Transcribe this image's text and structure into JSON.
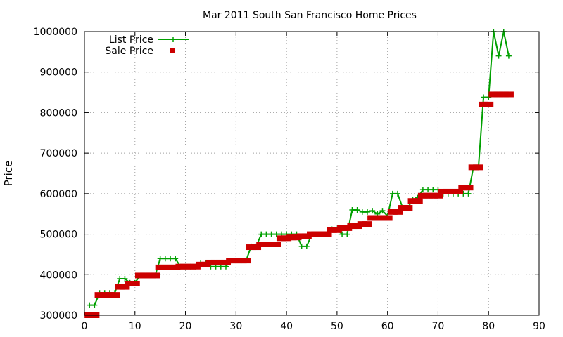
{
  "chart_data": {
    "type": "line",
    "title": "Mar 2011 South San Francisco Home Prices",
    "xlabel": "",
    "ylabel": "Price",
    "xlim": [
      0,
      90
    ],
    "ylim": [
      300000,
      1000000
    ],
    "xticks": [
      "0",
      "10",
      "20",
      "30",
      "40",
      "50",
      "60",
      "70",
      "80",
      "90"
    ],
    "yticks": [
      "300000",
      "400000",
      "500000",
      "600000",
      "700000",
      "800000",
      "900000",
      "1000000"
    ],
    "grid": true,
    "legend_position": "top-left",
    "series": [
      {
        "name": "List Price",
        "color": "#00a000",
        "marker": "plus",
        "x": [
          1,
          2,
          3,
          4,
          5,
          6,
          7,
          8,
          9,
          10,
          11,
          12,
          13,
          14,
          15,
          16,
          17,
          18,
          19,
          20,
          21,
          22,
          23,
          24,
          25,
          26,
          27,
          28,
          29,
          30,
          31,
          32,
          33,
          34,
          35,
          36,
          37,
          38,
          39,
          40,
          41,
          42,
          43,
          44,
          45,
          46,
          47,
          48,
          49,
          50,
          51,
          52,
          53,
          54,
          55,
          56,
          57,
          58,
          59,
          60,
          61,
          62,
          63,
          64,
          65,
          66,
          67,
          68,
          69,
          70,
          71,
          72,
          73,
          74,
          75,
          76,
          77,
          78,
          79,
          80,
          81,
          82,
          83,
          84
        ],
        "y": [
          325000,
          325000,
          355000,
          355000,
          355000,
          355000,
          390000,
          390000,
          380000,
          380000,
          398000,
          398000,
          398000,
          398000,
          440000,
          440000,
          440000,
          440000,
          420000,
          420000,
          420000,
          420000,
          428000,
          428000,
          420000,
          420000,
          420000,
          420000,
          435000,
          435000,
          435000,
          435000,
          470000,
          470000,
          500000,
          500000,
          500000,
          500000,
          500000,
          500000,
          500000,
          500000,
          470000,
          470000,
          500000,
          500000,
          500000,
          500000,
          512000,
          512000,
          500000,
          500000,
          560000,
          560000,
          555000,
          555000,
          558000,
          550000,
          558000,
          545000,
          600000,
          600000,
          565000,
          565000,
          585000,
          590000,
          610000,
          610000,
          610000,
          610000,
          600000,
          600000,
          600000,
          600000,
          600000,
          600000,
          665000,
          665000,
          838000,
          838000,
          1000000,
          940000,
          1000000,
          940000
        ]
      },
      {
        "name": "Sale Price",
        "color": "#cc0000",
        "marker": "square",
        "x": [
          1,
          2,
          3,
          4,
          5,
          6,
          7,
          8,
          9,
          10,
          11,
          12,
          13,
          14,
          15,
          16,
          17,
          18,
          19,
          20,
          21,
          22,
          23,
          24,
          25,
          26,
          27,
          28,
          29,
          30,
          31,
          32,
          33,
          34,
          35,
          36,
          37,
          38,
          39,
          40,
          41,
          42,
          43,
          44,
          45,
          46,
          47,
          48,
          49,
          50,
          51,
          52,
          53,
          54,
          55,
          56,
          57,
          58,
          59,
          60,
          61,
          62,
          63,
          64,
          65,
          66,
          67,
          68,
          69,
          70,
          71,
          72,
          73,
          74,
          75,
          76,
          77,
          78,
          79,
          80,
          81,
          82,
          83,
          84
        ],
        "y": [
          300000,
          300000,
          350000,
          350000,
          350000,
          350000,
          370000,
          370000,
          378000,
          378000,
          398000,
          398000,
          398000,
          398000,
          418000,
          418000,
          418000,
          418000,
          420000,
          420000,
          420000,
          420000,
          425000,
          425000,
          430000,
          430000,
          430000,
          430000,
          435000,
          435000,
          435000,
          435000,
          468000,
          468000,
          475000,
          475000,
          475000,
          475000,
          490000,
          490000,
          492000,
          492000,
          495000,
          495000,
          500000,
          500000,
          500000,
          500000,
          510000,
          510000,
          515000,
          515000,
          520000,
          520000,
          525000,
          525000,
          540000,
          540000,
          540000,
          540000,
          555000,
          555000,
          565000,
          565000,
          582000,
          582000,
          595000,
          595000,
          595000,
          595000,
          605000,
          605000,
          605000,
          605000,
          615000,
          615000,
          665000,
          665000,
          820000,
          820000,
          845000,
          845000,
          845000,
          845000
        ]
      }
    ]
  }
}
